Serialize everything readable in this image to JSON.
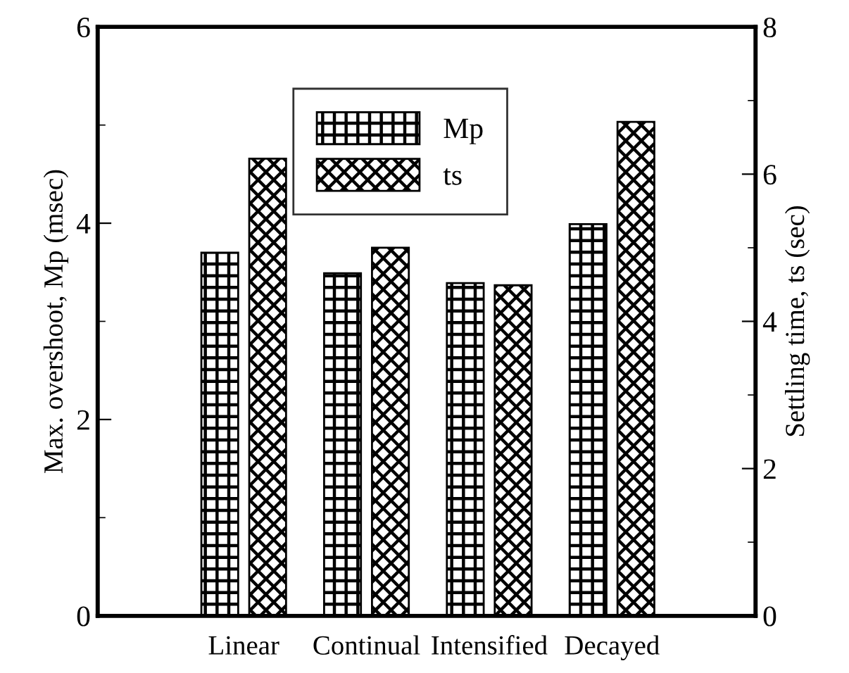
{
  "chart_data": {
    "type": "bar",
    "xlabel": null,
    "ylabel": "Max. overshoot, Mp (msec)",
    "y2label": "Settling time, ts (sec)",
    "categories": [
      "Linear",
      "Continual",
      "Intensified",
      "Decayed"
    ],
    "series": [
      {
        "name": "Mp",
        "color": "#000000",
        "values": [
          3.7,
          3.49,
          3.39,
          3.99
        ]
      },
      {
        "name": "ts",
        "color": "#000000",
        "axis": "y2",
        "values": [
          6.21,
          5.0,
          4.49,
          6.71
        ]
      }
    ],
    "ylim": [
      0,
      6
    ],
    "yticks": [
      0,
      2,
      4,
      6
    ],
    "y2lim": [
      0,
      8
    ],
    "y2ticks": [
      0,
      2,
      4,
      6,
      8
    ],
    "grid": false,
    "legend": "top"
  }
}
